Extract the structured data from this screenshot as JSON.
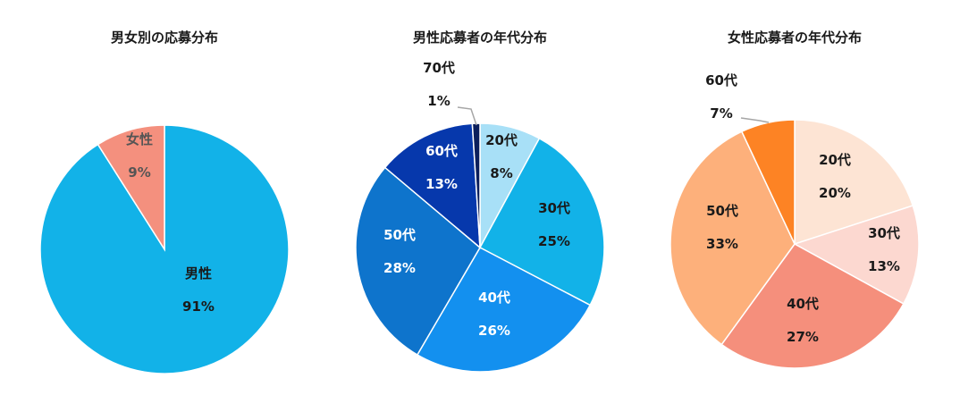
{
  "chart_data": [
    {
      "type": "pie",
      "title": "男女別の応募分布",
      "slices": [
        {
          "label": "男性",
          "value": 91,
          "text": "91%",
          "color": "#12b2e8",
          "text_color": "#1a1a1a"
        },
        {
          "label": "女性",
          "value": 9,
          "text": "9%",
          "color": "#f4907e",
          "text_color": "#555555"
        }
      ]
    },
    {
      "type": "pie",
      "title": "男性応募者の年代分布",
      "slices": [
        {
          "label": "20代",
          "value": 8,
          "text": "8%",
          "color": "#a8e0f7",
          "text_color": "#1a1a1a"
        },
        {
          "label": "30代",
          "value": 25,
          "text": "25%",
          "color": "#12b2e8",
          "text_color": "#1a1a1a"
        },
        {
          "label": "40代",
          "value": 26,
          "text": "26%",
          "color": "#1390ef",
          "text_color": "#ffffff"
        },
        {
          "label": "50代",
          "value": 28,
          "text": "28%",
          "color": "#0e74cc",
          "text_color": "#ffffff"
        },
        {
          "label": "60代",
          "value": 13,
          "text": "13%",
          "color": "#0638ac",
          "text_color": "#ffffff"
        },
        {
          "label": "70代",
          "value": 1,
          "text": "1%",
          "color": "#0b1f5c",
          "text_color": "#1a1a1a"
        }
      ]
    },
    {
      "type": "pie",
      "title": "女性応募者の年代分布",
      "slices": [
        {
          "label": "20代",
          "value": 20,
          "text": "20%",
          "color": "#fde4d4",
          "text_color": "#1a1a1a"
        },
        {
          "label": "30代",
          "value": 13,
          "text": "13%",
          "color": "#fcd8d0",
          "text_color": "#1a1a1a"
        },
        {
          "label": "40代",
          "value": 27,
          "text": "27%",
          "color": "#f58f7c",
          "text_color": "#1a1a1a"
        },
        {
          "label": "50代",
          "value": 33,
          "text": "33%",
          "color": "#fdb07b",
          "text_color": "#1a1a1a"
        },
        {
          "label": "60代",
          "value": 7,
          "text": "7%",
          "color": "#fd8324",
          "text_color": "#1a1a1a"
        }
      ]
    }
  ]
}
